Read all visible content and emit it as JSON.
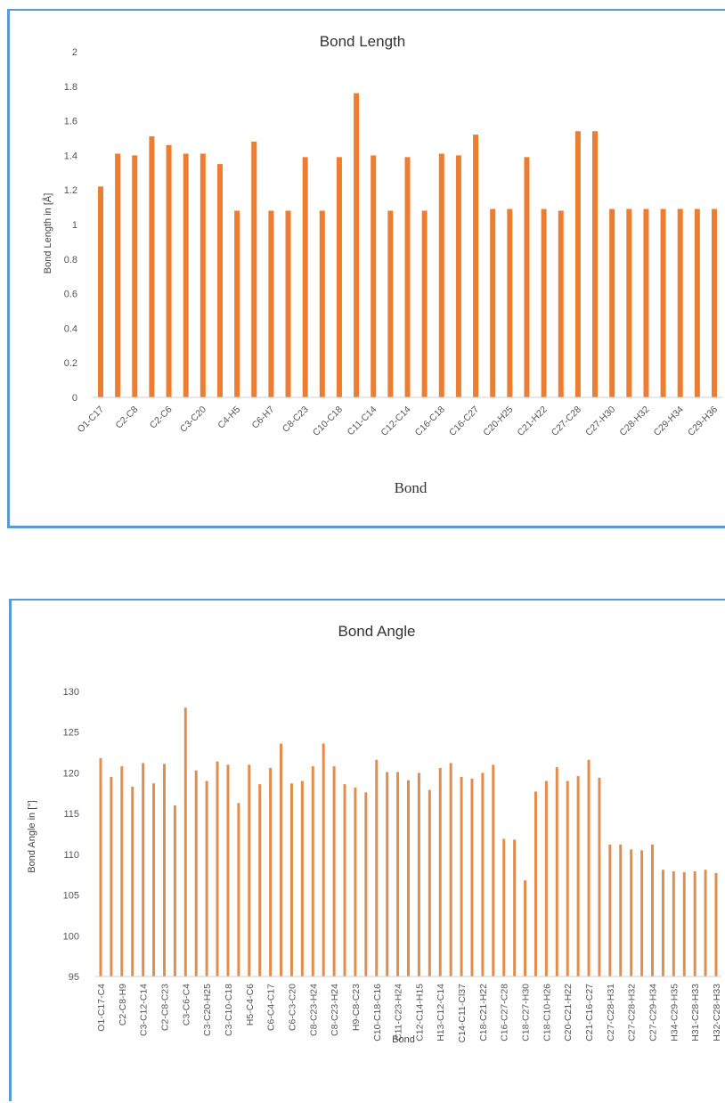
{
  "chart_data": [
    {
      "type": "bar",
      "title": "Bond Length",
      "xlabel": "Bond",
      "ylabel": "Bond Length in [Å]",
      "ylim": [
        0,
        2
      ],
      "yticks": [
        "0",
        "0.2",
        "0.4",
        "0.6",
        "0.8",
        "1",
        "1.2",
        "1.4",
        "1.6",
        "1.8",
        "2"
      ],
      "grid": false,
      "legend": "none",
      "bar_color": "#ed7d31",
      "tick_labels": [
        "O1-C17",
        "C2-C8",
        "C2-C6",
        "C3-C20",
        "C4-H5",
        "C6-H7",
        "C8-C23",
        "C10-C18",
        "C11-C14",
        "C12-C14",
        "C16-C18",
        "C16-C27",
        "C20-H25",
        "C21-H22",
        "C27-C28",
        "C27-H30",
        "C28-H32",
        "C29-H34",
        "C29-H36"
      ],
      "values": [
        1.22,
        1.41,
        1.4,
        1.51,
        1.46,
        1.41,
        1.41,
        1.35,
        1.08,
        1.48,
        1.08,
        1.08,
        1.39,
        1.08,
        1.39,
        1.76,
        1.4,
        1.08,
        1.39,
        1.08,
        1.41,
        1.4,
        1.52,
        1.09,
        1.09,
        1.39,
        1.09,
        1.08,
        1.54,
        1.54,
        1.09,
        1.09,
        1.09,
        1.09,
        1.09,
        1.09,
        1.09
      ]
    },
    {
      "type": "bar",
      "title": "Bond Angle",
      "xlabel": "Bond",
      "ylabel": "Bond Angle in [°]",
      "ylim": [
        95,
        130
      ],
      "yticks": [
        "95",
        "100",
        "105",
        "110",
        "115",
        "120",
        "125",
        "130"
      ],
      "grid": false,
      "legend": "none",
      "bar_color": "#e38d4c",
      "tick_labels": [
        "O1-C17-C4",
        "C2-C8-H9",
        "C3-C12-C14",
        "C2-C8-C23",
        "C3-C6-C4",
        "C3-C20-H25",
        "C3-C10-C18",
        "H5-C4-C6",
        "C6-C4-C17",
        "C6-C3-C20",
        "C8-C23-H24",
        "C8-C23-H24",
        "H9-C8-C23",
        "C10-C18-C16",
        "C11-C23-H24",
        "C12-C14-H15",
        "H13-C12-C14",
        "C14-C11-Cl37",
        "C18-C21-H22",
        "C16-C27-C28",
        "C18-C27-H30",
        "C18-C10-H26",
        "C20-C21-H22",
        "C21-C16-C27",
        "C27-C28-H31",
        "C27-C28-H32",
        "C27-C29-H34",
        "H34-C29-H35",
        "H31-C28-H33",
        "H32-C28-H33"
      ],
      "values": [
        121.8,
        119.5,
        120.8,
        118.3,
        121.2,
        118.7,
        121.1,
        116.0,
        128.0,
        120.3,
        119.0,
        121.4,
        121.0,
        116.3,
        121.0,
        118.6,
        120.6,
        123.6,
        118.7,
        119.0,
        120.8,
        123.6,
        120.8,
        118.6,
        118.2,
        117.6,
        121.6,
        120.1,
        120.1,
        119.1,
        120.0,
        117.9,
        120.6,
        121.2,
        119.5,
        119.3,
        120.0,
        121.0,
        111.9,
        111.8,
        106.8,
        117.7,
        119.0,
        120.7,
        119.0,
        119.6,
        121.6,
        119.4,
        111.2,
        111.2,
        110.6,
        110.5,
        111.2,
        108.1,
        107.9,
        107.8,
        107.9,
        108.1,
        107.7
      ]
    }
  ]
}
